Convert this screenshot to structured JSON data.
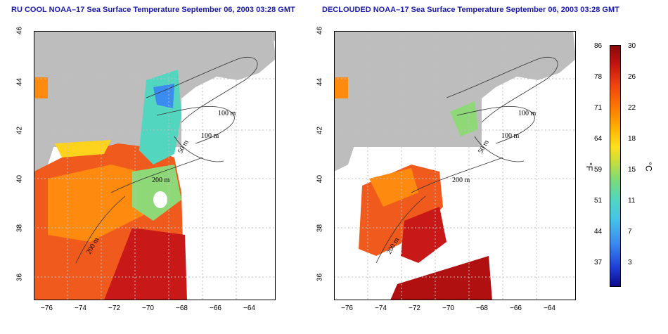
{
  "panels": [
    {
      "title": "RU COOL NOAA–17 Sea Surface Temperature September 06, 2003 03:28 GMT"
    },
    {
      "title": "DECLOUDED NOAA–17 Sea Surface Temperature September 06, 2003 03:28 GMT"
    }
  ],
  "x_ticks": [
    "−76",
    "−74",
    "−72",
    "−70",
    "−68",
    "−66",
    "−64"
  ],
  "y_ticks": [
    "46",
    "44",
    "42",
    "40",
    "38",
    "36"
  ],
  "contour_labels": {
    "m100a": "100 m",
    "m100b": "100 m",
    "m50": "50 m",
    "m200": "200 m",
    "m50b": "50 m",
    "m200b": "200 m"
  },
  "colorbar": {
    "fahrenheit_labels": [
      "86",
      "78",
      "71",
      "64",
      "59",
      "51",
      "44",
      "37"
    ],
    "celsius_labels": [
      "30",
      "26",
      "22",
      "18",
      "15",
      "11",
      "7",
      "3"
    ],
    "fahrenheit_unit": "°F",
    "celsius_unit": "°C",
    "colors": [
      "#0b0b8a",
      "#1f3fd8",
      "#46c4e8",
      "#7adb7a",
      "#ffe01c",
      "#ff7a00",
      "#c01010",
      "#8a0a0a"
    ]
  }
}
